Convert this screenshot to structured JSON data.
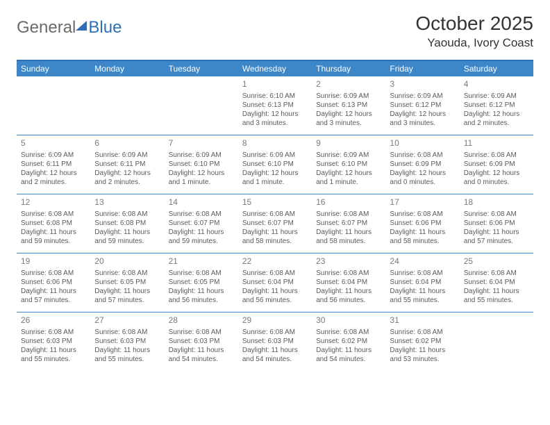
{
  "logo": {
    "part1": "General",
    "part2": "Blue"
  },
  "title": "October 2025",
  "location": "Yaouda, Ivory Coast",
  "colors": {
    "header_bg": "#3d87c9",
    "header_text": "#ffffff",
    "border": "#3d87c9",
    "daynum": "#7a7a7a",
    "body_text": "#5a5a5a",
    "logo_gray": "#6a6a6a",
    "logo_blue": "#2e6fb5"
  },
  "day_labels": [
    "Sunday",
    "Monday",
    "Tuesday",
    "Wednesday",
    "Thursday",
    "Friday",
    "Saturday"
  ],
  "rows": [
    [
      {
        "day": "",
        "lines": []
      },
      {
        "day": "",
        "lines": []
      },
      {
        "day": "",
        "lines": []
      },
      {
        "day": "1",
        "lines": [
          "Sunrise: 6:10 AM",
          "Sunset: 6:13 PM",
          "Daylight: 12 hours and 3 minutes."
        ]
      },
      {
        "day": "2",
        "lines": [
          "Sunrise: 6:09 AM",
          "Sunset: 6:13 PM",
          "Daylight: 12 hours and 3 minutes."
        ]
      },
      {
        "day": "3",
        "lines": [
          "Sunrise: 6:09 AM",
          "Sunset: 6:12 PM",
          "Daylight: 12 hours and 3 minutes."
        ]
      },
      {
        "day": "4",
        "lines": [
          "Sunrise: 6:09 AM",
          "Sunset: 6:12 PM",
          "Daylight: 12 hours and 2 minutes."
        ]
      }
    ],
    [
      {
        "day": "5",
        "lines": [
          "Sunrise: 6:09 AM",
          "Sunset: 6:11 PM",
          "Daylight: 12 hours and 2 minutes."
        ]
      },
      {
        "day": "6",
        "lines": [
          "Sunrise: 6:09 AM",
          "Sunset: 6:11 PM",
          "Daylight: 12 hours and 2 minutes."
        ]
      },
      {
        "day": "7",
        "lines": [
          "Sunrise: 6:09 AM",
          "Sunset: 6:10 PM",
          "Daylight: 12 hours and 1 minute."
        ]
      },
      {
        "day": "8",
        "lines": [
          "Sunrise: 6:09 AM",
          "Sunset: 6:10 PM",
          "Daylight: 12 hours and 1 minute."
        ]
      },
      {
        "day": "9",
        "lines": [
          "Sunrise: 6:09 AM",
          "Sunset: 6:10 PM",
          "Daylight: 12 hours and 1 minute."
        ]
      },
      {
        "day": "10",
        "lines": [
          "Sunrise: 6:08 AM",
          "Sunset: 6:09 PM",
          "Daylight: 12 hours and 0 minutes."
        ]
      },
      {
        "day": "11",
        "lines": [
          "Sunrise: 6:08 AM",
          "Sunset: 6:09 PM",
          "Daylight: 12 hours and 0 minutes."
        ]
      }
    ],
    [
      {
        "day": "12",
        "lines": [
          "Sunrise: 6:08 AM",
          "Sunset: 6:08 PM",
          "Daylight: 11 hours and 59 minutes."
        ]
      },
      {
        "day": "13",
        "lines": [
          "Sunrise: 6:08 AM",
          "Sunset: 6:08 PM",
          "Daylight: 11 hours and 59 minutes."
        ]
      },
      {
        "day": "14",
        "lines": [
          "Sunrise: 6:08 AM",
          "Sunset: 6:07 PM",
          "Daylight: 11 hours and 59 minutes."
        ]
      },
      {
        "day": "15",
        "lines": [
          "Sunrise: 6:08 AM",
          "Sunset: 6:07 PM",
          "Daylight: 11 hours and 58 minutes."
        ]
      },
      {
        "day": "16",
        "lines": [
          "Sunrise: 6:08 AM",
          "Sunset: 6:07 PM",
          "Daylight: 11 hours and 58 minutes."
        ]
      },
      {
        "day": "17",
        "lines": [
          "Sunrise: 6:08 AM",
          "Sunset: 6:06 PM",
          "Daylight: 11 hours and 58 minutes."
        ]
      },
      {
        "day": "18",
        "lines": [
          "Sunrise: 6:08 AM",
          "Sunset: 6:06 PM",
          "Daylight: 11 hours and 57 minutes."
        ]
      }
    ],
    [
      {
        "day": "19",
        "lines": [
          "Sunrise: 6:08 AM",
          "Sunset: 6:06 PM",
          "Daylight: 11 hours and 57 minutes."
        ]
      },
      {
        "day": "20",
        "lines": [
          "Sunrise: 6:08 AM",
          "Sunset: 6:05 PM",
          "Daylight: 11 hours and 57 minutes."
        ]
      },
      {
        "day": "21",
        "lines": [
          "Sunrise: 6:08 AM",
          "Sunset: 6:05 PM",
          "Daylight: 11 hours and 56 minutes."
        ]
      },
      {
        "day": "22",
        "lines": [
          "Sunrise: 6:08 AM",
          "Sunset: 6:04 PM",
          "Daylight: 11 hours and 56 minutes."
        ]
      },
      {
        "day": "23",
        "lines": [
          "Sunrise: 6:08 AM",
          "Sunset: 6:04 PM",
          "Daylight: 11 hours and 56 minutes."
        ]
      },
      {
        "day": "24",
        "lines": [
          "Sunrise: 6:08 AM",
          "Sunset: 6:04 PM",
          "Daylight: 11 hours and 55 minutes."
        ]
      },
      {
        "day": "25",
        "lines": [
          "Sunrise: 6:08 AM",
          "Sunset: 6:04 PM",
          "Daylight: 11 hours and 55 minutes."
        ]
      }
    ],
    [
      {
        "day": "26",
        "lines": [
          "Sunrise: 6:08 AM",
          "Sunset: 6:03 PM",
          "Daylight: 11 hours and 55 minutes."
        ]
      },
      {
        "day": "27",
        "lines": [
          "Sunrise: 6:08 AM",
          "Sunset: 6:03 PM",
          "Daylight: 11 hours and 55 minutes."
        ]
      },
      {
        "day": "28",
        "lines": [
          "Sunrise: 6:08 AM",
          "Sunset: 6:03 PM",
          "Daylight: 11 hours and 54 minutes."
        ]
      },
      {
        "day": "29",
        "lines": [
          "Sunrise: 6:08 AM",
          "Sunset: 6:03 PM",
          "Daylight: 11 hours and 54 minutes."
        ]
      },
      {
        "day": "30",
        "lines": [
          "Sunrise: 6:08 AM",
          "Sunset: 6:02 PM",
          "Daylight: 11 hours and 54 minutes."
        ]
      },
      {
        "day": "31",
        "lines": [
          "Sunrise: 6:08 AM",
          "Sunset: 6:02 PM",
          "Daylight: 11 hours and 53 minutes."
        ]
      },
      {
        "day": "",
        "lines": []
      }
    ]
  ]
}
